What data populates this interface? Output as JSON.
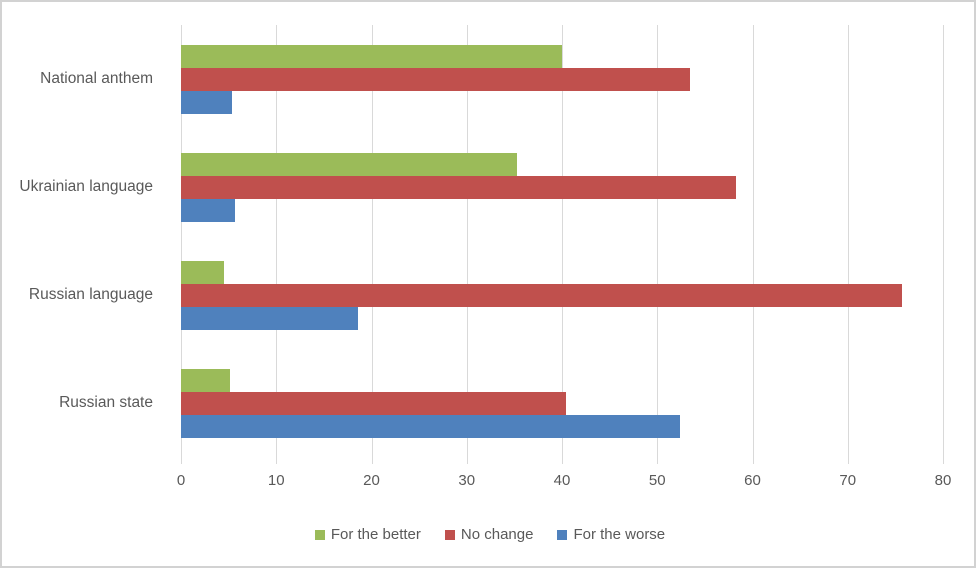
{
  "chart_data": {
    "type": "bar",
    "orientation": "horizontal",
    "title": "",
    "xlabel": "",
    "ylabel": "",
    "categories": [
      "National anthem",
      "Ukrainian language",
      "Russian language",
      "Russian state"
    ],
    "series": [
      {
        "name": "For the better",
        "color": "#9BBB59",
        "values": [
          40,
          35.3,
          4.5,
          5.1
        ]
      },
      {
        "name": "No change",
        "color": "#C0504D",
        "values": [
          53.4,
          58.3,
          75.7,
          40.4
        ]
      },
      {
        "name": "For the worse",
        "color": "#4F81BD",
        "values": [
          5.4,
          5.7,
          18.6,
          52.4
        ]
      }
    ],
    "xlim": [
      0,
      80
    ],
    "x_ticks": [
      0,
      10,
      20,
      30,
      40,
      50,
      60,
      70,
      80
    ],
    "grid": true,
    "legend_position": "bottom"
  },
  "colors": {
    "gridline": "#D9D9D9",
    "text": "#595959",
    "frame_border": "#D2D2D2",
    "background": "#FFFFFF"
  }
}
